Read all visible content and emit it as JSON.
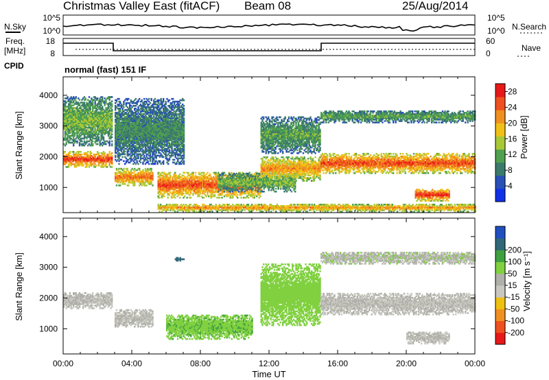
{
  "header": {
    "title": "Christmas Valley East (fitACF)",
    "beam": "Beam 08",
    "date": "25/Aug/2014"
  },
  "sky_panel": {
    "left_label": "N.Sky",
    "right_label": "N.Search",
    "left_ticks": [
      "10^5",
      "10^0"
    ],
    "right_ticks": [
      "10^5",
      "10^0"
    ]
  },
  "freq_panel": {
    "left_label_1": "Freq.",
    "left_label_2": "[MHz]",
    "left_ticks": [
      "18",
      "8"
    ],
    "right_ticks": [
      "60",
      "0"
    ],
    "right_label": "Nave"
  },
  "cpid": {
    "label": "CPID",
    "text": "normal (fast) 151 IF"
  },
  "colors": {
    "power_scale": [
      "#1030e8",
      "#2850b8",
      "#3c7a6c",
      "#50a050",
      "#a8c838",
      "#f0c018",
      "#f09020",
      "#f05020",
      "#e81818"
    ],
    "velocity_scale": [
      "#e81818",
      "#f05020",
      "#f09020",
      "#f0c010",
      "#c8c8c0",
      "#b0b0aa",
      "#80d040",
      "#40a040",
      "#306878",
      "#2050c0"
    ]
  },
  "chart_data": [
    {
      "type": "heatmap",
      "name": "power",
      "xlabel": "Time UT",
      "ylabel": "Slant Range [km]",
      "x_ticks": [
        "00:00",
        "04:00",
        "08:00",
        "12:00",
        "16:00",
        "20:00",
        "00:00"
      ],
      "xlim_hours": [
        0,
        24
      ],
      "y_ticks": [
        1000,
        2000,
        3000,
        4000
      ],
      "ylim_km": [
        180,
        4600
      ],
      "colorbar": {
        "label": "Power [dB]",
        "ticks": [
          4,
          8,
          12,
          16,
          20,
          24,
          28
        ],
        "range": [
          0,
          30
        ]
      },
      "echo_regions": [
        {
          "t": [
            0.0,
            2.8
          ],
          "r": [
            1650,
            2150
          ],
          "level": 27
        },
        {
          "t": [
            0.0,
            2.8
          ],
          "r": [
            2350,
            3950
          ],
          "level": 14
        },
        {
          "t": [
            3.0,
            5.2
          ],
          "r": [
            1050,
            1600
          ],
          "level": 24
        },
        {
          "t": [
            3.0,
            7.0
          ],
          "r": [
            1750,
            3900
          ],
          "level": 10
        },
        {
          "t": [
            5.5,
            11.5
          ],
          "r": [
            650,
            1500
          ],
          "level": 26
        },
        {
          "t": [
            9.0,
            13.5
          ],
          "r": [
            850,
            1450
          ],
          "level": 14
        },
        {
          "t": [
            11.5,
            15.0
          ],
          "r": [
            1200,
            2000
          ],
          "level": 22
        },
        {
          "t": [
            11.5,
            15.0
          ],
          "r": [
            2100,
            3300
          ],
          "level": 12
        },
        {
          "t": [
            15.0,
            24.0
          ],
          "r": [
            1450,
            2100
          ],
          "level": 26
        },
        {
          "t": [
            15.0,
            24.0
          ],
          "r": [
            3100,
            3500
          ],
          "level": 12
        },
        {
          "t": [
            20.5,
            22.5
          ],
          "r": [
            550,
            950
          ],
          "level": 28
        },
        {
          "t": [
            5.5,
            24.0
          ],
          "r": [
            200,
            450
          ],
          "level": 22
        }
      ]
    },
    {
      "type": "heatmap",
      "name": "velocity",
      "xlabel": "Time UT",
      "ylabel": "Slant Range [km]",
      "x_ticks": [
        "00:00",
        "04:00",
        "08:00",
        "12:00",
        "16:00",
        "20:00",
        "00:00"
      ],
      "xlim_hours": [
        0,
        24
      ],
      "y_ticks": [
        1000,
        2000,
        3000,
        4000
      ],
      "ylim_km": [
        180,
        4600
      ],
      "colorbar": {
        "label": "Velocity [m s⁻¹]",
        "ticks": [
          200,
          100,
          50,
          15,
          -15,
          -50,
          -100,
          -200
        ],
        "range": [
          -250,
          250
        ]
      },
      "echo_regions": [
        {
          "t": [
            0.0,
            2.8
          ],
          "r": [
            1650,
            2150
          ],
          "velocity": 0
        },
        {
          "t": [
            3.0,
            5.2
          ],
          "r": [
            1050,
            1600
          ],
          "velocity": 0
        },
        {
          "t": [
            6.0,
            11.0
          ],
          "r": [
            650,
            1450
          ],
          "velocity": 40
        },
        {
          "t": [
            11.5,
            15.0
          ],
          "r": [
            1100,
            3100
          ],
          "velocity": 35
        },
        {
          "t": [
            15.0,
            24.0
          ],
          "r": [
            1450,
            2150
          ],
          "velocity": 0
        },
        {
          "t": [
            15.0,
            24.0
          ],
          "r": [
            3100,
            3500
          ],
          "velocity": 5
        },
        {
          "t": [
            20.0,
            22.5
          ],
          "r": [
            500,
            900
          ],
          "velocity": 0
        },
        {
          "t": [
            6.5,
            7.0
          ],
          "r": [
            3200,
            3300
          ],
          "velocity": 150
        }
      ]
    }
  ]
}
